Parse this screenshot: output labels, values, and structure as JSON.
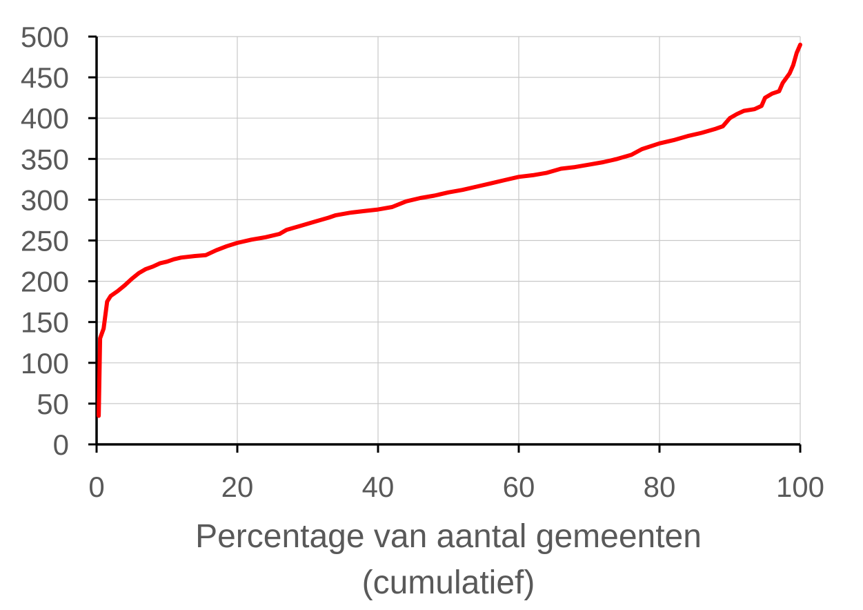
{
  "chart_data": {
    "type": "line",
    "title": "",
    "xlabel_lines": [
      "Percentage van aantal gemeenten",
      "(cumulatief)"
    ],
    "ylabel": "",
    "xlim": [
      0,
      100
    ],
    "ylim": [
      0,
      500
    ],
    "x_ticks": [
      0,
      20,
      40,
      60,
      80,
      100
    ],
    "y_ticks": [
      0,
      50,
      100,
      150,
      200,
      250,
      300,
      350,
      400,
      450,
      500
    ],
    "x_tick_labels": [
      "0",
      "20",
      "40",
      "60",
      "80",
      "100"
    ],
    "y_tick_labels": [
      "0",
      "50",
      "100",
      "150",
      "200",
      "250",
      "300",
      "350",
      "400",
      "450",
      "500"
    ],
    "grid": true,
    "legend": "none",
    "series": [
      {
        "color": "#ff0000",
        "points": [
          [
            0.3,
            35
          ],
          [
            0.5,
            130
          ],
          [
            1.0,
            142
          ],
          [
            1.5,
            175
          ],
          [
            2.0,
            182
          ],
          [
            3.0,
            188
          ],
          [
            4.0,
            195
          ],
          [
            5.0,
            203
          ],
          [
            6.0,
            210
          ],
          [
            7.0,
            215
          ],
          [
            8.0,
            218
          ],
          [
            9.0,
            222
          ],
          [
            10.0,
            224
          ],
          [
            11.0,
            227
          ],
          [
            12.0,
            229
          ],
          [
            14.0,
            231
          ],
          [
            15.5,
            232
          ],
          [
            17.0,
            238
          ],
          [
            18.5,
            243
          ],
          [
            20.0,
            247
          ],
          [
            22.0,
            251
          ],
          [
            24.0,
            254
          ],
          [
            26.0,
            258
          ],
          [
            27.0,
            263
          ],
          [
            29.0,
            268
          ],
          [
            31.0,
            273
          ],
          [
            33.0,
            278
          ],
          [
            34.0,
            281
          ],
          [
            36.0,
            284
          ],
          [
            38.0,
            286
          ],
          [
            40.0,
            288
          ],
          [
            42.0,
            291
          ],
          [
            44.0,
            298
          ],
          [
            46.0,
            302
          ],
          [
            48.0,
            305
          ],
          [
            50.0,
            309
          ],
          [
            52.0,
            312
          ],
          [
            54.0,
            316
          ],
          [
            56.0,
            320
          ],
          [
            58.0,
            324
          ],
          [
            60.0,
            328
          ],
          [
            62.0,
            330
          ],
          [
            64.0,
            333
          ],
          [
            66.0,
            338
          ],
          [
            68.0,
            340
          ],
          [
            70.0,
            343
          ],
          [
            72.0,
            346
          ],
          [
            74.0,
            350
          ],
          [
            76.0,
            355
          ],
          [
            77.5,
            362
          ],
          [
            80.0,
            369
          ],
          [
            82.0,
            373
          ],
          [
            84.0,
            378
          ],
          [
            86.0,
            382
          ],
          [
            88.0,
            387
          ],
          [
            89.0,
            390
          ],
          [
            90.0,
            400
          ],
          [
            91.0,
            405
          ],
          [
            92.0,
            409
          ],
          [
            93.5,
            411
          ],
          [
            94.5,
            415
          ],
          [
            95.0,
            425
          ],
          [
            96.0,
            430
          ],
          [
            97.0,
            433
          ],
          [
            97.5,
            443
          ],
          [
            98.5,
            455
          ],
          [
            99.0,
            465
          ],
          [
            99.5,
            480
          ],
          [
            100.0,
            490
          ]
        ]
      }
    ]
  }
}
